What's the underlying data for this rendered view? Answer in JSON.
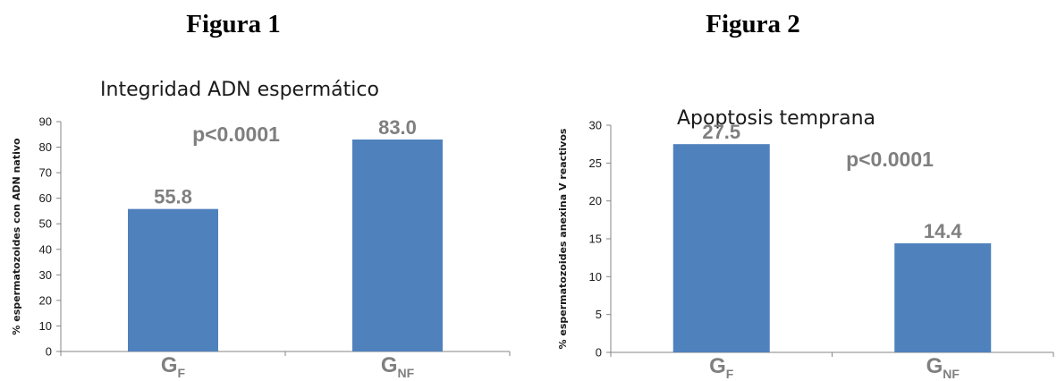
{
  "chart_data": [
    {
      "type": "bar",
      "figure_heading": "Figura 1",
      "title": "Integridad ADN espermático",
      "ylabel": "% espermatozoides con ADN nativo",
      "categories": [
        {
          "main": "G",
          "sub": "F"
        },
        {
          "main": "G",
          "sub": "NF"
        }
      ],
      "values": [
        55.8,
        83.0
      ],
      "data_labels": [
        "55.8",
        "83.0"
      ],
      "annotation": "p<0.0001",
      "ylim": [
        0,
        90
      ],
      "yticks": [
        0,
        10,
        20,
        30,
        40,
        50,
        60,
        70,
        80,
        90
      ],
      "bar_color": "#4f81bd",
      "grid": false
    },
    {
      "type": "bar",
      "figure_heading": "Figura 2",
      "title": "Apoptosis temprana",
      "ylabel": "% espermatozoides anexina V reactivos",
      "categories": [
        {
          "main": "G",
          "sub": "F"
        },
        {
          "main": "G",
          "sub": "NF"
        }
      ],
      "values": [
        27.5,
        14.4
      ],
      "data_labels": [
        "27.5",
        "14.4"
      ],
      "annotation": "p<0.0001",
      "ylim": [
        0,
        30
      ],
      "yticks": [
        0,
        5,
        10,
        15,
        20,
        25,
        30
      ],
      "bar_color": "#4f81bd",
      "grid": false
    }
  ]
}
